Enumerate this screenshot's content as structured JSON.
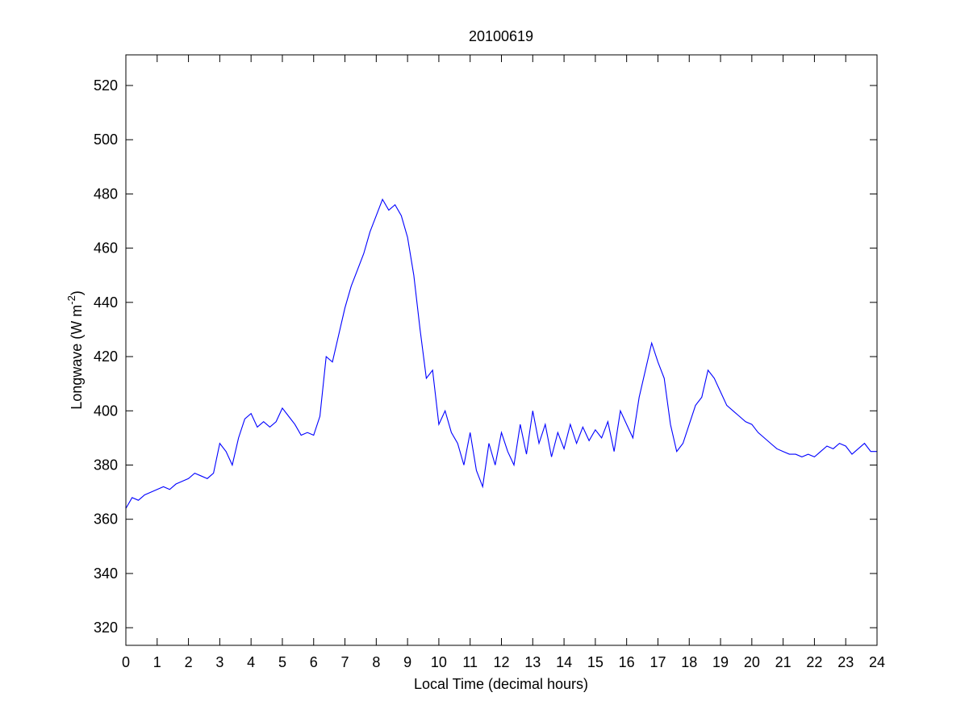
{
  "chart_data": {
    "type": "line",
    "title": "20100619",
    "xlabel": "Local Time (decimal hours)",
    "ylabel": {
      "text": "Longwave (W m",
      "sup": "-2",
      "end": ")"
    },
    "x": [
      0,
      0.2,
      0.4,
      0.6,
      0.8,
      1,
      1.2,
      1.4,
      1.6,
      1.8,
      2,
      2.2,
      2.4,
      2.6,
      2.8,
      3,
      3.2,
      3.4,
      3.6,
      3.8,
      4,
      4.2,
      4.4,
      4.6,
      4.8,
      5,
      5.2,
      5.4,
      5.6,
      5.8,
      6,
      6.2,
      6.4,
      6.6,
      6.8,
      7,
      7.2,
      7.4,
      7.6,
      7.8,
      8,
      8.2,
      8.4,
      8.6,
      8.8,
      9,
      9.2,
      9.4,
      9.6,
      9.8,
      10,
      10.2,
      10.4,
      10.6,
      10.8,
      11,
      11.2,
      11.4,
      11.6,
      11.8,
      12,
      12.2,
      12.4,
      12.6,
      12.8,
      13,
      13.2,
      13.4,
      13.6,
      13.8,
      14,
      14.2,
      14.4,
      14.6,
      14.8,
      15,
      15.2,
      15.4,
      15.6,
      15.8,
      16,
      16.2,
      16.4,
      16.6,
      16.8,
      17,
      17.2,
      17.4,
      17.6,
      17.8,
      18,
      18.2,
      18.4,
      18.6,
      18.8,
      19,
      19.2,
      19.4,
      19.6,
      19.8,
      20,
      20.2,
      20.4,
      20.6,
      20.8,
      21,
      21.2,
      21.4,
      21.6,
      21.8,
      22,
      22.2,
      22.4,
      22.6,
      22.8,
      23,
      23.2,
      23.4,
      23.6,
      23.8,
      24
    ],
    "series": [
      {
        "color": "#0000ff",
        "values": [
          364,
          368,
          367,
          369,
          370,
          371,
          372,
          371,
          373,
          374,
          375,
          377,
          376,
          375,
          377,
          388,
          385,
          380,
          390,
          397,
          399,
          394,
          396,
          394,
          396,
          401,
          398,
          395,
          391,
          392,
          391,
          398,
          420,
          418,
          428,
          438,
          446,
          452,
          458,
          466,
          472,
          478,
          474,
          476,
          472,
          464,
          450,
          430,
          412,
          415,
          395,
          400,
          392,
          388,
          380,
          392,
          378,
          372,
          388,
          380,
          392,
          385,
          380,
          395,
          384,
          400,
          388,
          395,
          383,
          392,
          386,
          395,
          388,
          394,
          389,
          393,
          390,
          396,
          385,
          400,
          395,
          390,
          405,
          415,
          425,
          418,
          412,
          395,
          385,
          388,
          395,
          402,
          405,
          415,
          412,
          407,
          402,
          400,
          398,
          396,
          395,
          392,
          390,
          388,
          386,
          385,
          384,
          384,
          383,
          384,
          383,
          385,
          387,
          386,
          388,
          387,
          384,
          386,
          388,
          385,
          385
        ]
      }
    ],
    "xlim": [
      0,
      24
    ],
    "xticks": [
      0,
      1,
      2,
      3,
      4,
      5,
      6,
      7,
      8,
      9,
      10,
      11,
      12,
      13,
      14,
      15,
      16,
      17,
      18,
      19,
      20,
      21,
      22,
      23,
      24
    ],
    "ylim": [
      313.5,
      531.3
    ],
    "yticks": [
      320,
      340,
      360,
      380,
      400,
      420,
      440,
      460,
      480,
      500,
      520
    ]
  }
}
